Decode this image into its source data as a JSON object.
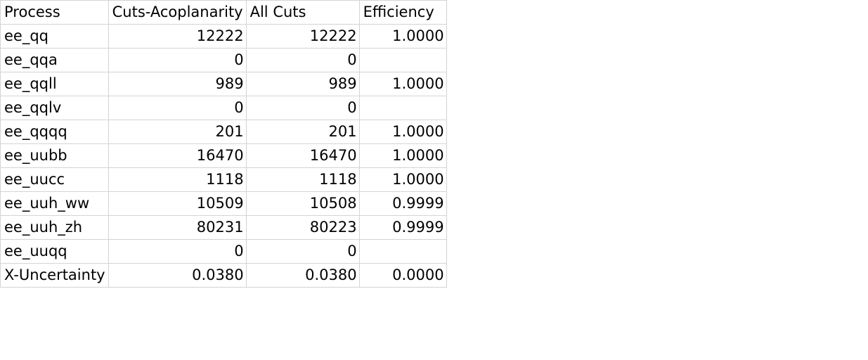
{
  "header": {
    "process": "Process",
    "cuts_acoplanarity": "Cuts-Acoplanarity",
    "all_cuts": "All Cuts",
    "efficiency": "Efficiency"
  },
  "rows": [
    {
      "process": "ee_qq",
      "cuts_acoplanarity": "12222",
      "all_cuts": "12222",
      "efficiency": "1.0000"
    },
    {
      "process": "ee_qqa",
      "cuts_acoplanarity": "0",
      "all_cuts": "0",
      "efficiency": ""
    },
    {
      "process": "ee_qqll",
      "cuts_acoplanarity": "989",
      "all_cuts": "989",
      "efficiency": "1.0000"
    },
    {
      "process": "ee_qqlv",
      "cuts_acoplanarity": "0",
      "all_cuts": "0",
      "efficiency": ""
    },
    {
      "process": "ee_qqqq",
      "cuts_acoplanarity": "201",
      "all_cuts": "201",
      "efficiency": "1.0000"
    },
    {
      "process": "ee_uubb",
      "cuts_acoplanarity": "16470",
      "all_cuts": "16470",
      "efficiency": "1.0000"
    },
    {
      "process": "ee_uucc",
      "cuts_acoplanarity": "1118",
      "all_cuts": "1118",
      "efficiency": "1.0000"
    },
    {
      "process": "ee_uuh_ww",
      "cuts_acoplanarity": "10509",
      "all_cuts": "10508",
      "efficiency": "0.9999"
    },
    {
      "process": "ee_uuh_zh",
      "cuts_acoplanarity": "80231",
      "all_cuts": "80223",
      "efficiency": "0.9999"
    },
    {
      "process": "ee_uuqq",
      "cuts_acoplanarity": "0",
      "all_cuts": "0",
      "efficiency": ""
    },
    {
      "process": "X-Uncertainty",
      "cuts_acoplanarity": "0.0380",
      "all_cuts": "0.0380",
      "efficiency": "0.0000"
    }
  ]
}
